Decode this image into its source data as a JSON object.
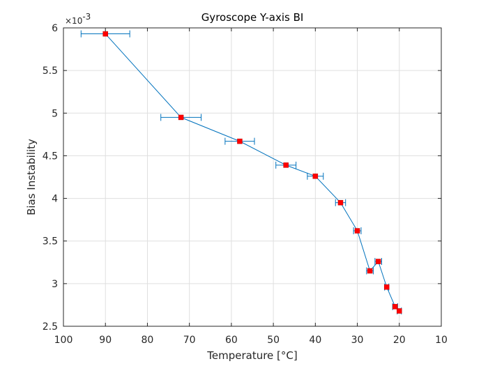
{
  "chart_data": {
    "type": "scatter",
    "title": "Gyroscope Y-axis BI",
    "xlabel": "Temperature [°C]",
    "ylabel": "Bias Instability",
    "y_exponent_label": "×10",
    "y_exponent": "-3",
    "xlim": [
      10,
      100
    ],
    "x_reversed": true,
    "ylim": [
      2.5,
      6
    ],
    "y_scale_factor": 0.001,
    "grid": true,
    "x_ticks": [
      100,
      90,
      80,
      70,
      60,
      50,
      40,
      30,
      20,
      10
    ],
    "y_ticks": [
      2.5,
      3,
      3.5,
      4,
      4.5,
      5,
      5.5,
      6
    ],
    "x_tick_labels": [
      "100",
      "90",
      "80",
      "70",
      "60",
      "50",
      "40",
      "30",
      "20",
      "10"
    ],
    "y_tick_labels": [
      "2.5",
      "3",
      "3.5",
      "4",
      "4.5",
      "5",
      "5.5",
      "6"
    ],
    "series": [
      {
        "line_color": "#0072BD",
        "marker_color": "#FF0000",
        "points": [
          {
            "x": 90,
            "y": 5.93,
            "xerr": 5.8
          },
          {
            "x": 72,
            "y": 4.95,
            "xerr": 4.8
          },
          {
            "x": 58,
            "y": 4.67,
            "xerr": 3.5
          },
          {
            "x": 47,
            "y": 4.39,
            "xerr": 2.4
          },
          {
            "x": 40,
            "y": 4.26,
            "xerr": 1.9
          },
          {
            "x": 34,
            "y": 3.95,
            "xerr": 1.2
          },
          {
            "x": 30,
            "y": 3.62,
            "xerr": 0.9
          },
          {
            "x": 27,
            "y": 3.15,
            "xerr": 0.8
          },
          {
            "x": 25,
            "y": 3.26,
            "xerr": 0.8
          },
          {
            "x": 23,
            "y": 2.96,
            "xerr": 0.5
          },
          {
            "x": 21,
            "y": 2.73,
            "xerr": 0.6
          },
          {
            "x": 20,
            "y": 2.68,
            "xerr": 0.5
          }
        ]
      }
    ]
  }
}
